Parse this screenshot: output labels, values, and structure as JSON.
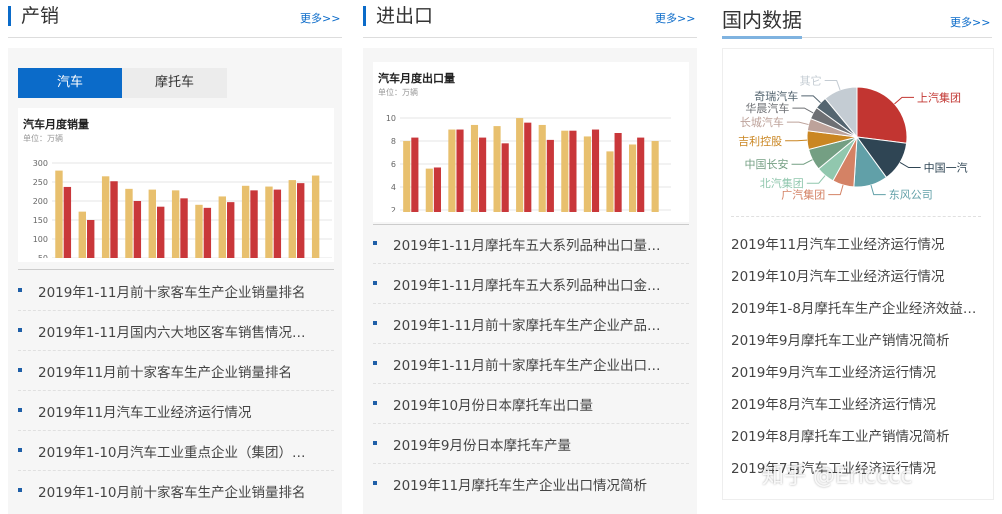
{
  "panels": [
    {
      "title": "产销",
      "more": "更多>>",
      "tabs": [
        "汽车",
        "摩托车"
      ],
      "news": [
        "2019年1-11月前十家客车生产企业销量排名",
        "2019年1-11月国内六大地区客车销售情况…",
        "2019年11月前十家客车生产企业销量排名",
        "2019年11月汽车工业经济运行情况",
        "2019年1-10月汽车工业重点企业（集团）…",
        "2019年1-10月前十家客车生产企业销量排名"
      ]
    },
    {
      "title": "进出口",
      "more": "更多>>",
      "news": [
        "2019年1-11月摩托车五大系列品种出口量…",
        "2019年1-11月摩托车五大系列品种出口金…",
        "2019年1-11月前十家摩托车生产企业产品…",
        "2019年1-11月前十家摩托车生产企业出口…",
        "2019年10月份日本摩托车出口量",
        "2019年9月份日本摩托车产量",
        "2019年11月摩托车生产企业出口情况简析"
      ]
    },
    {
      "title": "国内数据",
      "more": "更多>>",
      "news": [
        "2019年11月汽车工业经济运行情况",
        "2019年10月汽车工业经济运行情况",
        "2019年1-8月摩托车生产企业经济效益…",
        "2019年9月摩托车工业产销情况简析",
        "2019年9月汽车工业经济运行情况",
        "2019年8月汽车工业经济运行情况",
        "2019年8月摩托车工业产销情况简析",
        "2019年7月汽车工业经济运行情况"
      ]
    }
  ],
  "watermark": "知乎 @Ericccc",
  "chart_data": [
    {
      "type": "bar",
      "title": "汽车月度销量",
      "subtitle": "单位：万辆",
      "categories": [
        null,
        null,
        null,
        null,
        null,
        null,
        null,
        null,
        null,
        null,
        null,
        null
      ],
      "series": [
        {
          "color": "#e8c06e",
          "values": [
            280,
            172,
            265,
            232,
            230,
            228,
            190,
            212,
            240,
            238,
            255,
            267
          ]
        },
        {
          "color": "#c9373a",
          "values": [
            237,
            150,
            252,
            200,
            185,
            207,
            182,
            197,
            228,
            230,
            247,
            null
          ]
        }
      ],
      "ylim": [
        0,
        310
      ],
      "yticks": [
        50,
        100,
        150,
        200,
        250,
        300
      ],
      "grid": true
    },
    {
      "type": "bar",
      "title": "汽车月度出口量",
      "subtitle": "单位：万辆",
      "categories": [
        null,
        null,
        null,
        null,
        null,
        null,
        null,
        null,
        null,
        null,
        null,
        null
      ],
      "series": [
        {
          "color": "#e8c06e",
          "values": [
            8.0,
            5.6,
            9.0,
            9.4,
            9.3,
            10.0,
            9.4,
            8.9,
            8.4,
            7.1,
            7.7,
            8.0
          ]
        },
        {
          "color": "#c9373a",
          "values": [
            8.3,
            5.7,
            9.0,
            8.3,
            7.8,
            9.6,
            8.1,
            8.9,
            9.0,
            8.7,
            8.3,
            null
          ]
        }
      ],
      "ylim": [
        0,
        10.3
      ],
      "yticks": [
        2,
        4,
        6,
        8,
        10
      ],
      "grid": true
    },
    {
      "type": "pie",
      "categories": [
        "上汽集团",
        "中国一汽",
        "东风公司",
        "广汽集团",
        "北汽集团",
        "中国长安",
        "吉利控股",
        "长城汽车",
        "华晨汽车",
        "奇瑞汽车",
        "其它"
      ],
      "values": [
        27,
        13,
        11,
        7,
        6,
        7,
        6,
        4,
        4,
        4,
        11
      ],
      "colors": [
        "#c23531",
        "#2f4554",
        "#61a0a8",
        "#d48265",
        "#91c7ae",
        "#749f83",
        "#ca8622",
        "#bda29a",
        "#6e7074",
        "#546570",
        "#c4ccd3"
      ]
    }
  ]
}
